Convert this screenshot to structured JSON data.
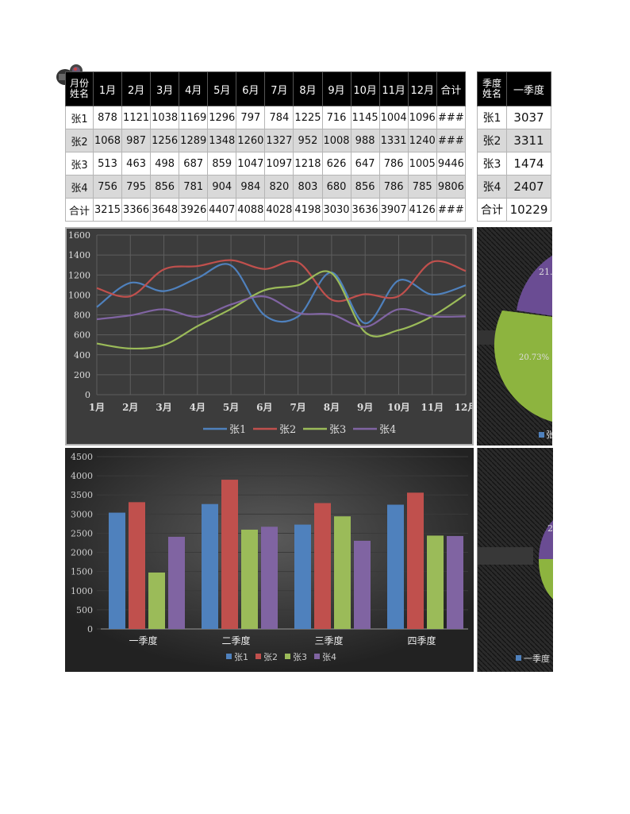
{
  "monthly_table": {
    "corner_top": "月份",
    "corner_bottom": "姓名",
    "headers": [
      "1月",
      "2月",
      "3月",
      "4月",
      "5月",
      "6月",
      "7月",
      "8月",
      "9月",
      "10月",
      "11月",
      "12月",
      "合计"
    ],
    "rows": [
      {
        "name": "张1",
        "values": [
          "878",
          "1121",
          "1038",
          "1169",
          "1296",
          "797",
          "784",
          "1225",
          "716",
          "1145",
          "1004",
          "1096",
          "###"
        ]
      },
      {
        "name": "张2",
        "values": [
          "1068",
          "987",
          "1256",
          "1289",
          "1348",
          "1260",
          "1327",
          "952",
          "1008",
          "988",
          "1331",
          "1240",
          "###"
        ]
      },
      {
        "name": "张3",
        "values": [
          "513",
          "463",
          "498",
          "687",
          "859",
          "1047",
          "1097",
          "1218",
          "626",
          "647",
          "786",
          "1005",
          "9446"
        ]
      },
      {
        "name": "张4",
        "values": [
          "756",
          "795",
          "856",
          "781",
          "904",
          "984",
          "820",
          "803",
          "680",
          "856",
          "786",
          "785",
          "9806"
        ]
      },
      {
        "name": "合计",
        "values": [
          "3215",
          "3366",
          "3648",
          "3926",
          "4407",
          "4088",
          "4028",
          "4198",
          "3030",
          "3636",
          "3907",
          "4126",
          "###"
        ]
      }
    ]
  },
  "quarter_table": {
    "corner_top": "季度",
    "corner_bottom": "姓名",
    "header": "一季度",
    "rows": [
      {
        "name": "张1",
        "value": "3037"
      },
      {
        "name": "张2",
        "value": "3311"
      },
      {
        "name": "张3",
        "value": "1474"
      },
      {
        "name": "张4",
        "value": "2407"
      },
      {
        "name": "合计",
        "value": "10229"
      }
    ]
  },
  "colors": {
    "zhang1": "#4f81bd",
    "zhang2": "#c0504d",
    "zhang3": "#9bbb59",
    "zhang4": "#8064a2",
    "panel_bg": "#3c3c3c",
    "dark_bg": "#262626"
  },
  "pie_labels": {
    "top": "21.",
    "middle": "20.73%",
    "legend_top": "张",
    "legend_bottom": "一季度",
    "bottom_slice": "2"
  },
  "chart_data": [
    {
      "type": "line",
      "title": "",
      "categories": [
        "1月",
        "2月",
        "3月",
        "4月",
        "5月",
        "6月",
        "7月",
        "8月",
        "9月",
        "10月",
        "11月",
        "12月"
      ],
      "series": [
        {
          "name": "张1",
          "values": [
            878,
            1121,
            1038,
            1169,
            1296,
            797,
            784,
            1225,
            716,
            1145,
            1004,
            1096
          ]
        },
        {
          "name": "张2",
          "values": [
            1068,
            987,
            1256,
            1289,
            1348,
            1260,
            1327,
            952,
            1008,
            988,
            1331,
            1240
          ]
        },
        {
          "name": "张3",
          "values": [
            513,
            463,
            498,
            687,
            859,
            1047,
            1097,
            1218,
            626,
            647,
            786,
            1005
          ]
        },
        {
          "name": "张4",
          "values": [
            756,
            795,
            856,
            781,
            904,
            984,
            820,
            803,
            680,
            856,
            786,
            785
          ]
        }
      ],
      "yticks": [
        0,
        200,
        400,
        600,
        800,
        1000,
        1200,
        1400,
        1600
      ],
      "ylim": [
        0,
        1600
      ],
      "grid": true,
      "smooth": true,
      "legend_position": "bottom"
    },
    {
      "type": "bar",
      "title": "",
      "categories": [
        "一季度",
        "二季度",
        "三季度",
        "四季度"
      ],
      "series": [
        {
          "name": "张1",
          "values": [
            3037,
            3262,
            2725,
            3245
          ]
        },
        {
          "name": "张2",
          "values": [
            3311,
            3897,
            3287,
            3559
          ]
        },
        {
          "name": "张3",
          "values": [
            1474,
            2593,
            2941,
            2438
          ]
        },
        {
          "name": "张4",
          "values": [
            2407,
            2669,
            2303,
            2427
          ]
        }
      ],
      "yticks": [
        0,
        500,
        1000,
        1500,
        2000,
        2500,
        3000,
        3500,
        4000,
        4500
      ],
      "ylim": [
        0,
        4500
      ],
      "grid": true,
      "legend_position": "bottom"
    },
    {
      "type": "pie",
      "title": "",
      "note": "partially visible (clipped)",
      "visible_labels": [
        "21.",
        "20.73%"
      ],
      "legend": [
        "一季度"
      ]
    }
  ]
}
